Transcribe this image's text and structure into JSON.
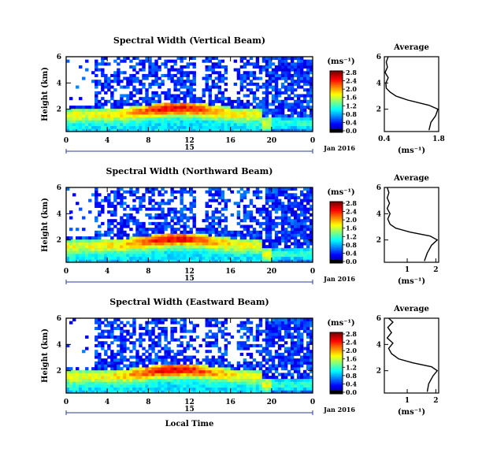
{
  "chart_data": [
    {
      "type": "heatmap",
      "title": "Spectral Width (Vertical Beam)",
      "ylabel": "Height (km)",
      "xlabel": "",
      "x_range": [
        0,
        24
      ],
      "y_range": [
        0.3,
        6
      ],
      "x_ticks": [
        "0",
        "4",
        "8",
        "12",
        "16",
        "20",
        "0"
      ],
      "y_ticks": [
        "2",
        "4",
        "6"
      ],
      "date_label": "15",
      "month_label": "Jan 2016",
      "colorbar": {
        "unit": "(ms⁻¹)",
        "ticks": [
          "0.0",
          "0.4",
          "0.8",
          "1.2",
          "1.6",
          "2.0",
          "2.4",
          "2.8"
        ],
        "range": [
          0,
          3.0
        ]
      },
      "profile": {
        "title": "Average",
        "xlabel": "(ms⁻¹)",
        "x_ticks": [
          "0.4",
          "1.8"
        ],
        "y_ticks": [
          "2",
          "4",
          "6"
        ],
        "x_range": [
          0.4,
          1.8
        ],
        "points": [
          [
            1.55,
            0.4
          ],
          [
            1.6,
            1.0
          ],
          [
            1.72,
            1.5
          ],
          [
            1.78,
            2.0
          ],
          [
            1.55,
            2.3
          ],
          [
            1.0,
            2.7
          ],
          [
            0.7,
            3.0
          ],
          [
            0.55,
            3.3
          ],
          [
            0.45,
            3.6
          ],
          [
            0.44,
            4.0
          ],
          [
            0.5,
            4.4
          ],
          [
            0.42,
            4.8
          ],
          [
            0.48,
            5.2
          ],
          [
            0.45,
            5.6
          ],
          [
            0.5,
            6.0
          ]
        ]
      }
    },
    {
      "type": "heatmap",
      "title": "Spectral Width (Northward Beam)",
      "ylabel": "Height (km)",
      "xlabel": "",
      "x_range": [
        0,
        24
      ],
      "y_range": [
        0.3,
        6
      ],
      "x_ticks": [
        "0",
        "4",
        "8",
        "12",
        "16",
        "20",
        "0"
      ],
      "y_ticks": [
        "2",
        "4",
        "6"
      ],
      "date_label": "15",
      "month_label": "Jan 2016",
      "colorbar": {
        "unit": "(ms⁻¹)",
        "ticks": [
          "0.0",
          "0.4",
          "0.8",
          "1.2",
          "1.6",
          "2.0",
          "2.4",
          "2.8"
        ],
        "range": [
          0,
          3.0
        ]
      },
      "profile": {
        "title": "Average",
        "xlabel": "(ms⁻¹)",
        "x_ticks": [
          "1",
          "2"
        ],
        "y_ticks": [
          "2",
          "4",
          "6"
        ],
        "x_range": [
          0.2,
          2.1
        ],
        "points": [
          [
            1.6,
            0.4
          ],
          [
            1.7,
            1.0
          ],
          [
            1.85,
            1.6
          ],
          [
            2.05,
            2.0
          ],
          [
            1.8,
            2.3
          ],
          [
            1.1,
            2.6
          ],
          [
            0.6,
            2.9
          ],
          [
            0.4,
            3.2
          ],
          [
            0.32,
            3.6
          ],
          [
            0.4,
            4.0
          ],
          [
            0.3,
            4.4
          ],
          [
            0.38,
            4.8
          ],
          [
            0.3,
            5.2
          ],
          [
            0.36,
            5.6
          ],
          [
            0.3,
            6.0
          ]
        ]
      }
    },
    {
      "type": "heatmap",
      "title": "Spectral Width (Eastward Beam)",
      "ylabel": "Height (km)",
      "xlabel": "Local Time",
      "x_range": [
        0,
        24
      ],
      "y_range": [
        0.3,
        6
      ],
      "x_ticks": [
        "0",
        "4",
        "8",
        "12",
        "16",
        "20",
        "0"
      ],
      "y_ticks": [
        "2",
        "4",
        "6"
      ],
      "date_label": "15",
      "month_label": "Jan 2016",
      "colorbar": {
        "unit": "(ms⁻¹)",
        "ticks": [
          "0.0",
          "0.4",
          "0.8",
          "1.2",
          "1.6",
          "2.0",
          "2.4",
          "2.8"
        ],
        "range": [
          0,
          3.0
        ]
      },
      "profile": {
        "title": "Average",
        "xlabel": "(ms⁻¹)",
        "x_ticks": [
          "1",
          "2"
        ],
        "y_ticks": [
          "2",
          "4",
          "6"
        ],
        "x_range": [
          0.2,
          2.1
        ],
        "points": [
          [
            1.7,
            0.4
          ],
          [
            1.75,
            1.0
          ],
          [
            1.9,
            1.6
          ],
          [
            2.05,
            2.0
          ],
          [
            1.85,
            2.3
          ],
          [
            1.2,
            2.6
          ],
          [
            0.7,
            2.9
          ],
          [
            0.45,
            3.3
          ],
          [
            0.35,
            3.7
          ],
          [
            0.5,
            4.1
          ],
          [
            0.3,
            4.5
          ],
          [
            0.45,
            4.9
          ],
          [
            0.32,
            5.3
          ],
          [
            0.5,
            5.7
          ],
          [
            0.35,
            6.0
          ]
        ]
      }
    }
  ]
}
